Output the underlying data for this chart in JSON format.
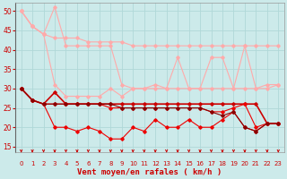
{
  "x": [
    0,
    1,
    2,
    3,
    4,
    5,
    6,
    7,
    8,
    9,
    10,
    11,
    12,
    13,
    14,
    15,
    16,
    17,
    18,
    19,
    20,
    21,
    22,
    23
  ],
  "lines": [
    {
      "y": [
        50,
        46,
        44,
        51,
        41,
        41,
        41,
        41,
        41,
        31,
        30,
        30,
        31,
        30,
        38,
        30,
        30,
        38,
        38,
        30,
        41,
        30,
        31,
        31
      ],
      "color": "#ffaaaa",
      "lw": 0.8,
      "marker": "D",
      "ms": 1.8
    },
    {
      "y": [
        50,
        46,
        44,
        43,
        43,
        43,
        42,
        42,
        42,
        42,
        41,
        41,
        41,
        41,
        41,
        41,
        41,
        41,
        41,
        41,
        41,
        41,
        41,
        41
      ],
      "color": "#ffaaaa",
      "lw": 0.8,
      "marker": "D",
      "ms": 1.8
    },
    {
      "y": [
        50,
        46,
        44,
        31,
        28,
        28,
        28,
        28,
        30,
        28,
        30,
        30,
        30,
        30,
        30,
        30,
        30,
        30,
        30,
        30,
        30,
        30,
        30,
        31
      ],
      "color": "#ffaaaa",
      "lw": 0.8,
      "marker": "D",
      "ms": 1.8
    },
    {
      "y": [
        30,
        27,
        26,
        20,
        20,
        19,
        20,
        19,
        17,
        17,
        20,
        19,
        22,
        20,
        20,
        22,
        20,
        20,
        22,
        24,
        20,
        19,
        21,
        21
      ],
      "color": "#ee0000",
      "lw": 0.8,
      "marker": "D",
      "ms": 1.8
    },
    {
      "y": [
        30,
        27,
        26,
        29,
        26,
        26,
        26,
        26,
        26,
        26,
        26,
        26,
        26,
        26,
        26,
        26,
        26,
        26,
        26,
        26,
        26,
        26,
        21,
        21
      ],
      "color": "#cc0000",
      "lw": 1.2,
      "marker": "D",
      "ms": 1.8
    },
    {
      "y": [
        30,
        27,
        26,
        26,
        26,
        26,
        26,
        26,
        25,
        25,
        25,
        25,
        25,
        25,
        25,
        25,
        25,
        24,
        24,
        25,
        26,
        20,
        21,
        21
      ],
      "color": "#ee0000",
      "lw": 0.8,
      "marker": "D",
      "ms": 1.8
    },
    {
      "y": [
        30,
        27,
        26,
        26,
        26,
        26,
        26,
        26,
        26,
        25,
        25,
        25,
        25,
        25,
        25,
        25,
        25,
        24,
        23,
        24,
        20,
        19,
        21,
        21
      ],
      "color": "#880000",
      "lw": 0.8,
      "marker": "D",
      "ms": 1.8
    }
  ],
  "xlabel": "Vent moyen/en rafales ( km/h )",
  "ylim": [
    13.5,
    52
  ],
  "yticks": [
    15,
    20,
    25,
    30,
    35,
    40,
    45,
    50
  ],
  "xlim": [
    -0.5,
    23.5
  ],
  "xticks": [
    0,
    1,
    2,
    3,
    4,
    5,
    6,
    7,
    8,
    9,
    10,
    11,
    12,
    13,
    14,
    15,
    16,
    17,
    18,
    19,
    20,
    21,
    22,
    23
  ],
  "bg_color": "#cceaea",
  "grid_color": "#b0d8d8",
  "tick_color": "#cc0000",
  "arrow_color": "#cc0000",
  "spine_color": "#999999"
}
